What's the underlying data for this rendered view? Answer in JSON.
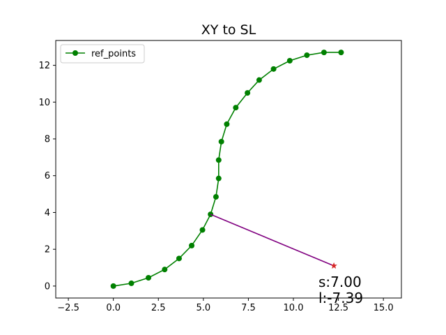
{
  "chart_data": {
    "type": "line",
    "title": "XY to SL",
    "xlabel": "",
    "ylabel": "",
    "xlim": [
      -3.2,
      16.0
    ],
    "ylim": [
      -0.65,
      13.35
    ],
    "xticks": [
      -2.5,
      0.0,
      2.5,
      5.0,
      7.5,
      10.0,
      12.5,
      15.0
    ],
    "xtick_labels": [
      "−2.5",
      "0.0",
      "2.5",
      "5.0",
      "7.5",
      "10.0",
      "12.5",
      "15.0"
    ],
    "yticks": [
      0,
      2,
      4,
      6,
      8,
      10,
      12
    ],
    "ytick_labels": [
      "0",
      "2",
      "4",
      "6",
      "8",
      "10",
      "12"
    ],
    "grid": false,
    "legend": {
      "placement": "top-left",
      "entries": [
        "ref_points"
      ]
    },
    "series": [
      {
        "name": "ref_points",
        "color": "#008000",
        "marker": "circle",
        "x": [
          0.0,
          1.0,
          1.95,
          2.85,
          3.65,
          4.35,
          4.95,
          5.4,
          5.7,
          5.85,
          5.85,
          6.0,
          6.3,
          6.8,
          7.45,
          8.1,
          8.9,
          9.8,
          10.75,
          11.7,
          12.65
        ],
        "y": [
          0.0,
          0.15,
          0.45,
          0.9,
          1.5,
          2.2,
          3.05,
          3.9,
          4.85,
          5.85,
          6.85,
          7.85,
          8.8,
          9.7,
          10.5,
          11.2,
          11.8,
          12.25,
          12.55,
          12.7,
          12.7
        ]
      }
    ],
    "projection": {
      "color": "#800080",
      "from": [
        5.4,
        3.9
      ],
      "to": [
        12.25,
        1.1
      ]
    },
    "query_point": {
      "x": 12.25,
      "y": 1.1,
      "color": "#d62728",
      "marker": "star"
    },
    "annotation": {
      "s_text": "s:7.00",
      "l_text": "l:-7.39"
    }
  }
}
